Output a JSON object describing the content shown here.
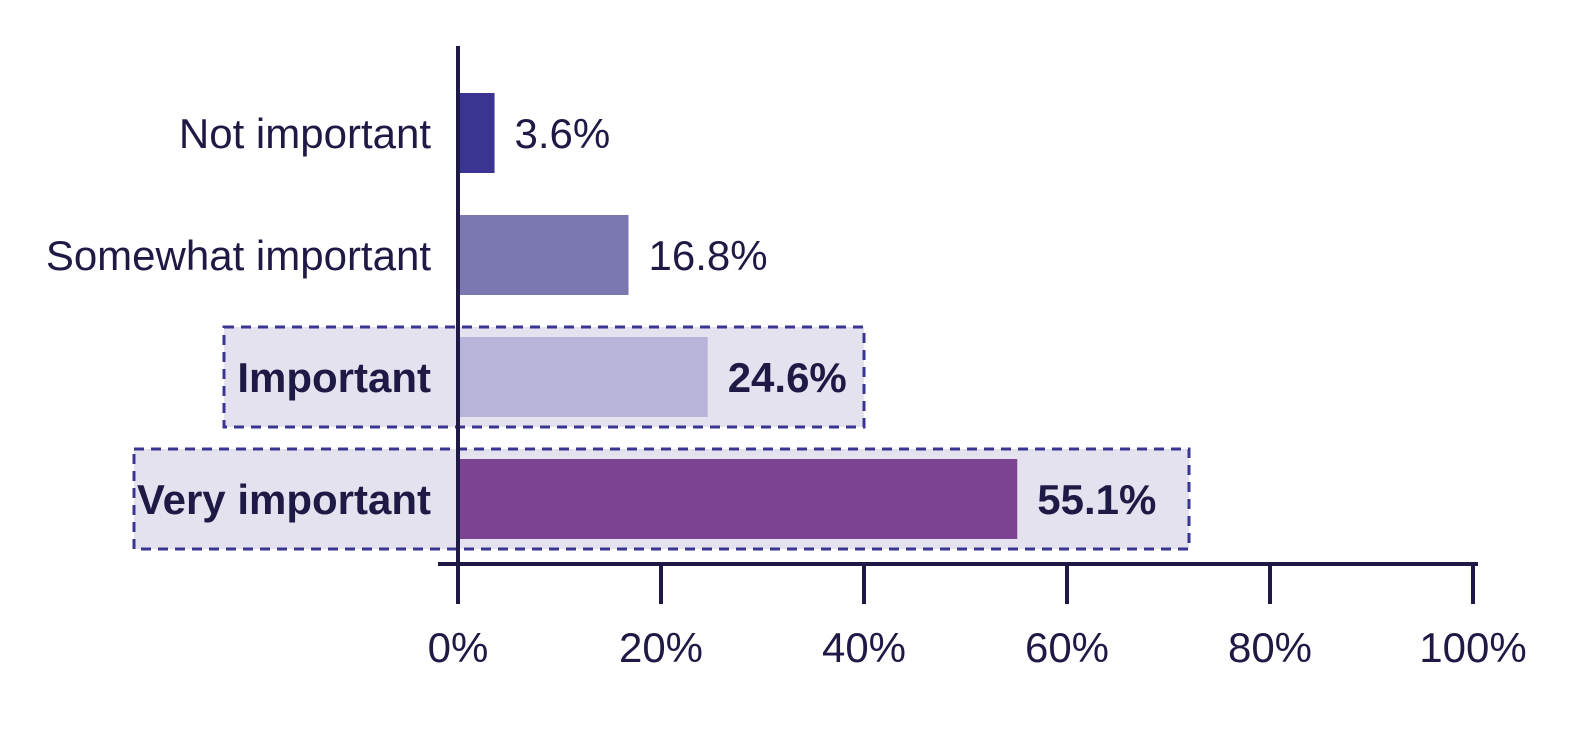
{
  "chart_data": {
    "type": "bar",
    "orientation": "horizontal",
    "title": "",
    "xlabel": "",
    "ylabel": "",
    "categories": [
      "Not important",
      "Somewhat important",
      "Important",
      "Very important"
    ],
    "values": [
      3.6,
      16.8,
      24.6,
      55.1
    ],
    "value_labels": [
      "3.6%",
      "16.8%",
      "24.6%",
      "55.1%"
    ],
    "highlighted": [
      false,
      false,
      true,
      true
    ],
    "bar_colors": [
      "#3a3592",
      "#7b77b1",
      "#b8b4d9",
      "#7d4393"
    ],
    "highlight_fill": "#e4e2ef",
    "highlight_border": "#3a3592",
    "xlim": [
      0,
      100
    ],
    "xticks": [
      0,
      20,
      40,
      60,
      80,
      100
    ],
    "xtick_labels": [
      "0%",
      "20%",
      "40%",
      "60%",
      "80%",
      "100%"
    ],
    "grid": false,
    "legend": "none"
  }
}
